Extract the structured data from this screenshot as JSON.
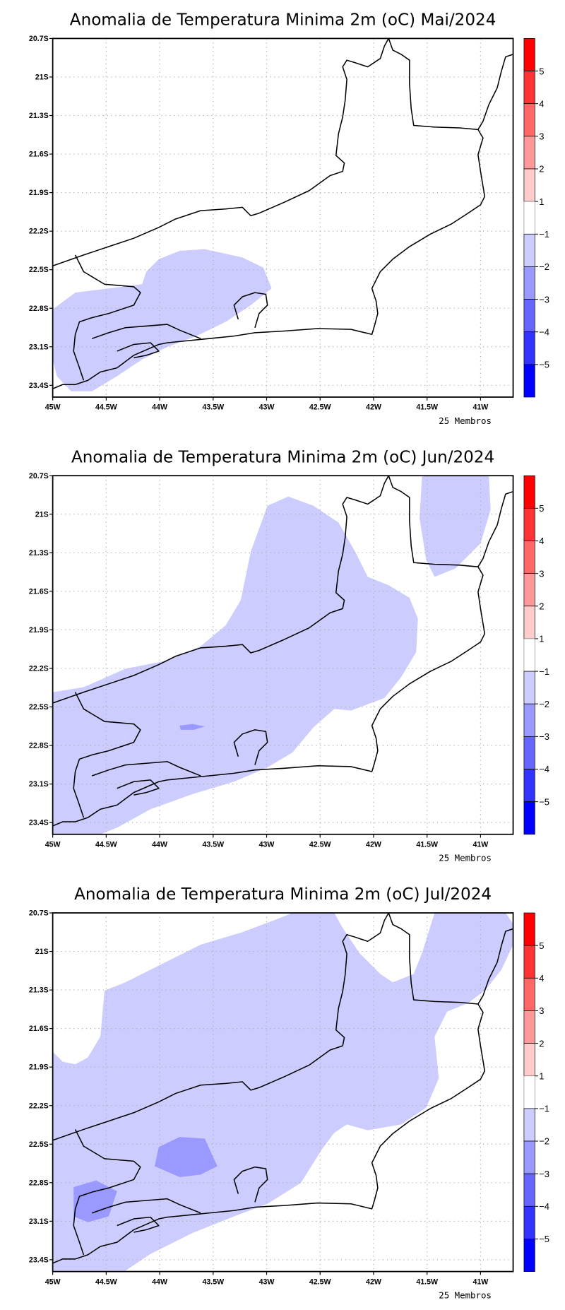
{
  "chart_data": [
    {
      "type": "heatmap",
      "title": "Anomalia de Temperatura Minima 2m (oC) Mai/2024",
      "footnote": "25 Membros",
      "lat_ticks": [
        "20.7S",
        "21S",
        "21.3S",
        "21.6S",
        "21.9S",
        "22.2S",
        "22.5S",
        "22.8S",
        "23.1S",
        "23.4S"
      ],
      "lon_ticks": [
        "45W",
        "44.5W",
        "44W",
        "43.5W",
        "43W",
        "42.5W",
        "42W",
        "41.5W",
        "41W"
      ],
      "xlim": [
        -45,
        -40.7
      ],
      "ylim": [
        -23.5,
        -20.7
      ],
      "regions": [
        {
          "range": "-2 to -1",
          "area": "south-west coast / Serra do Mar"
        }
      ]
    },
    {
      "type": "heatmap",
      "title": "Anomalia de Temperatura Minima 2m (oC) Jun/2024",
      "footnote": "25 Membros",
      "lat_ticks": [
        "20.7S",
        "21S",
        "21.3S",
        "21.6S",
        "21.9S",
        "22.2S",
        "22.5S",
        "22.8S",
        "23.1S",
        "23.4S"
      ],
      "lon_ticks": [
        "45W",
        "44.5W",
        "44W",
        "43.5W",
        "43W",
        "42.5W",
        "42W",
        "41.5W",
        "41W"
      ],
      "xlim": [
        -45,
        -40.7
      ],
      "ylim": [
        -23.5,
        -20.7
      ],
      "regions": [
        {
          "range": "-2 to -1",
          "area": "west and central"
        },
        {
          "range": "-2 to -1",
          "area": "north-east"
        },
        {
          "range": "-3 to -2",
          "area": "small spot near 43.8W 22.7S"
        }
      ]
    },
    {
      "type": "heatmap",
      "title": "Anomalia de Temperatura Minima 2m (oC) Jul/2024",
      "footnote": "25 Membros",
      "lat_ticks": [
        "20.7S",
        "21S",
        "21.3S",
        "21.6S",
        "21.9S",
        "22.2S",
        "22.5S",
        "22.8S",
        "23.1S",
        "23.4S"
      ],
      "lon_ticks": [
        "45W",
        "44.5W",
        "44W",
        "43.5W",
        "43W",
        "42.5W",
        "42W",
        "41.5W",
        "41W"
      ],
      "xlim": [
        -45,
        -40.7
      ],
      "ylim": [
        -23.5,
        -20.7
      ],
      "regions": [
        {
          "range": "-2 to -1",
          "area": "most of domain"
        },
        {
          "range": "-3 to -2",
          "area": "near 43.8W 22.6S"
        },
        {
          "range": "-3 to -2",
          "area": "near 44.6W 23S"
        }
      ]
    }
  ],
  "colorbar": {
    "labels": [
      "5",
      "4",
      "3",
      "2",
      "1",
      "−1",
      "−2",
      "−3",
      "−4",
      "−5"
    ],
    "colors": [
      "#ff0000",
      "#ff3333",
      "#ff6666",
      "#ff9999",
      "#ffcccc",
      "#ffffff",
      "#ccccff",
      "#9999ff",
      "#6666ff",
      "#3333ff",
      "#0000ff"
    ]
  },
  "fill_colors": {
    "light": "#ccccff",
    "medium": "#9999ff"
  }
}
